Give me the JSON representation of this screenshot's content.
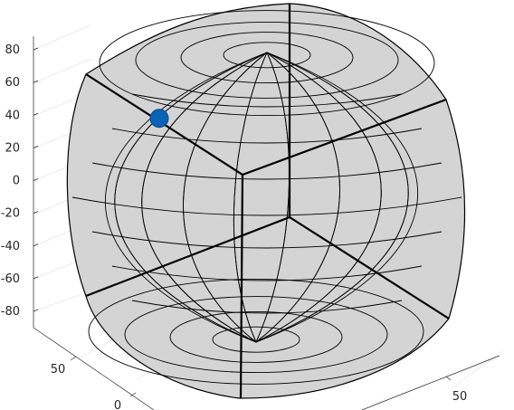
{
  "chart_data": {
    "type": "scatter",
    "view": "3d",
    "title": "",
    "xlabel": "",
    "ylabel": "",
    "zlabel": "",
    "z_ticks": [
      "80",
      "60",
      "40",
      "20",
      "0",
      "-20",
      "-40",
      "-60",
      "-80"
    ],
    "y_ticks": [
      "50",
      "0"
    ],
    "x_ticks": [
      "50"
    ],
    "zlim": [
      -90,
      90
    ],
    "grid": true,
    "surface": {
      "shape": "rounded cube (sphere-like mesh) with latitude/longitude grid",
      "face_color": "#d4d4d4",
      "edge_color": "#000000"
    },
    "series": [
      {
        "marker": "filled circle",
        "color": "#0b63b6",
        "points": [
          {
            "z": 58
          }
        ]
      }
    ]
  }
}
